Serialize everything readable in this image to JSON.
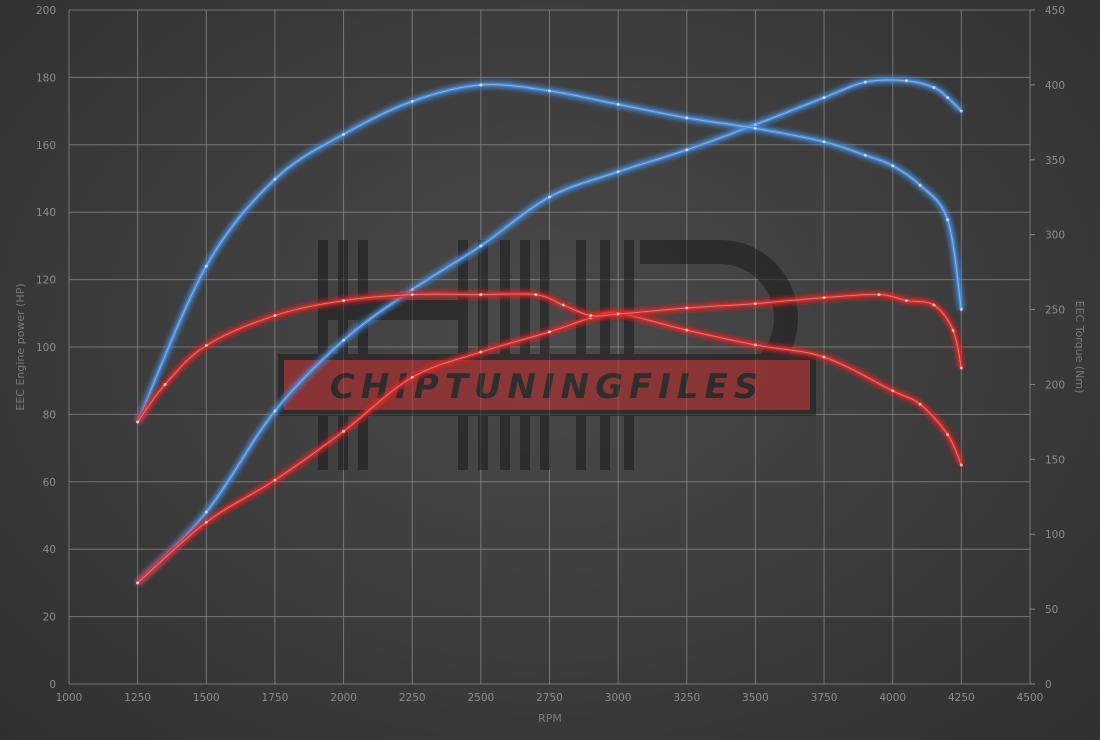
{
  "chart_data": {
    "type": "line",
    "title": "",
    "xlabel": "RPM",
    "ylabel_left": "EEC Engine power (HP)",
    "ylabel_right": "EEC Torque (Nm)",
    "xlim": [
      1000,
      4500
    ],
    "ylim_left": [
      0,
      200
    ],
    "ylim_right": [
      0,
      450
    ],
    "x_ticks": [
      1000,
      1250,
      1500,
      1750,
      2000,
      2250,
      2500,
      2750,
      3000,
      3250,
      3500,
      3750,
      4000,
      4250,
      4500
    ],
    "y_left_ticks": [
      0,
      20,
      40,
      60,
      80,
      100,
      120,
      140,
      160,
      180,
      200
    ],
    "y_right_ticks": [
      0,
      50,
      100,
      150,
      200,
      250,
      300,
      350,
      400,
      450
    ],
    "grid": true,
    "colors": {
      "tuned": "#4a8fe0",
      "stock": "#e02a2a"
    },
    "series": [
      {
        "axis": "left",
        "color": "tuned",
        "x": [
          1250,
          1500,
          1750,
          2000,
          2250,
          2500,
          2750,
          3000,
          3250,
          3500,
          3750,
          3900,
          4050,
          4150,
          4200,
          4250
        ],
        "y": [
          30,
          51,
          81,
          102,
          117,
          130,
          144.5,
          152,
          158.5,
          166,
          174,
          178.6,
          179,
          177,
          174,
          170
        ]
      },
      {
        "axis": "left",
        "color": "stock",
        "x": [
          1250,
          1500,
          1750,
          2000,
          2250,
          2500,
          2750,
          2900,
          3000,
          3250,
          3500,
          3750,
          4000,
          4100,
          4200,
          4250
        ],
        "y": [
          30,
          48,
          60.5,
          75,
          91,
          98.5,
          104.5,
          108.6,
          110,
          105,
          100.6,
          97,
          87,
          83,
          74,
          65
        ]
      },
      {
        "axis": "right",
        "color": "tuned",
        "x": [
          1250,
          1500,
          1750,
          2000,
          2250,
          2500,
          2750,
          3000,
          3250,
          3500,
          3750,
          3900,
          4000,
          4100,
          4200,
          4250
        ],
        "y": [
          175,
          279,
          337,
          367,
          389,
          400,
          396,
          387,
          378,
          371,
          362,
          353,
          346,
          333,
          310,
          250
        ]
      },
      {
        "axis": "right",
        "color": "stock",
        "x": [
          1250,
          1350,
          1500,
          1750,
          2000,
          2250,
          2500,
          2700,
          2800,
          2900,
          3000,
          3250,
          3500,
          3750,
          3950,
          4050,
          4150,
          4220,
          4250
        ],
        "y": [
          175,
          200,
          226,
          246,
          256,
          260,
          260,
          260,
          253,
          246,
          247,
          251,
          254,
          258,
          260,
          256,
          253,
          236,
          211
        ]
      }
    ]
  },
  "watermark": {
    "text": "CHIPTUNINGFILES"
  }
}
